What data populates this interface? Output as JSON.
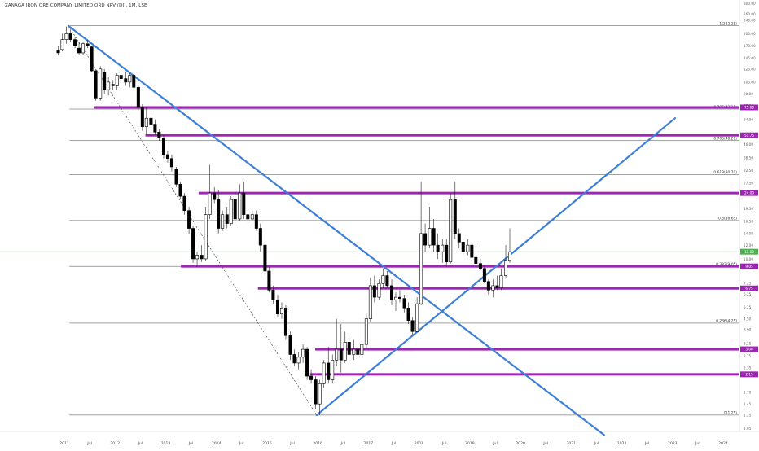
{
  "chart_data": {
    "type": "candlestick",
    "title": "ZANAGA IRON ORE COMPANY LIMITED ORD NPV (DI), 1M, LSE",
    "y_scale": "log",
    "ylim": [
      1.05,
      300
    ],
    "x_range": [
      "2010-10",
      "2024-06"
    ],
    "x_ticks": [
      {
        "t": 2011.0,
        "label": "2011"
      },
      {
        "t": 2011.5,
        "label": "Jul"
      },
      {
        "t": 2012.0,
        "label": "2012"
      },
      {
        "t": 2012.5,
        "label": "Jul"
      },
      {
        "t": 2013.0,
        "label": "2013"
      },
      {
        "t": 2013.5,
        "label": "Jul"
      },
      {
        "t": 2014.0,
        "label": "2014"
      },
      {
        "t": 2014.5,
        "label": "Jul"
      },
      {
        "t": 2015.0,
        "label": "2015"
      },
      {
        "t": 2015.5,
        "label": "Jul"
      },
      {
        "t": 2016.0,
        "label": "2016"
      },
      {
        "t": 2016.5,
        "label": "Jul"
      },
      {
        "t": 2017.0,
        "label": "2017"
      },
      {
        "t": 2017.5,
        "label": "Jul"
      },
      {
        "t": 2018.0,
        "label": "2018"
      },
      {
        "t": 2018.5,
        "label": "Jul"
      },
      {
        "t": 2019.0,
        "label": "2019"
      },
      {
        "t": 2019.5,
        "label": "Jul"
      },
      {
        "t": 2020.0,
        "label": "2020"
      },
      {
        "t": 2020.5,
        "label": "Jul"
      },
      {
        "t": 2021.0,
        "label": "2021"
      },
      {
        "t": 2021.5,
        "label": "Jul"
      },
      {
        "t": 2022.0,
        "label": "2022"
      },
      {
        "t": 2022.5,
        "label": "Jul"
      },
      {
        "t": 2023.0,
        "label": "2023"
      },
      {
        "t": 2023.5,
        "label": "Jul"
      },
      {
        "t": 2024.0,
        "label": "2024"
      }
    ],
    "y_ticks": [
      {
        "v": 300,
        "label": "300.00"
      },
      {
        "v": 260,
        "label": "260.00"
      },
      {
        "v": 240,
        "label": "240.00"
      },
      {
        "v": 200,
        "label": "200.00"
      },
      {
        "v": 170,
        "label": "170.00"
      },
      {
        "v": 145,
        "label": "145.00"
      },
      {
        "v": 125,
        "label": "125.00"
      },
      {
        "v": 105,
        "label": "105.00"
      },
      {
        "v": 90,
        "label": "90.00"
      },
      {
        "v": 77,
        "label": "77.00"
      },
      {
        "v": 64,
        "label": "64.00"
      },
      {
        "v": 46,
        "label": "46.00"
      },
      {
        "v": 38.5,
        "label": "38.50"
      },
      {
        "v": 32.5,
        "label": "32.50"
      },
      {
        "v": 27.5,
        "label": "27.50"
      },
      {
        "v": 19.5,
        "label": "19.50"
      },
      {
        "v": 16.5,
        "label": "16.50"
      },
      {
        "v": 14,
        "label": "14.00"
      },
      {
        "v": 12,
        "label": "12.00"
      },
      {
        "v": 10,
        "label": "10.00"
      },
      {
        "v": 7.25,
        "label": "7.25"
      },
      {
        "v": 6.25,
        "label": "6.25"
      },
      {
        "v": 5.25,
        "label": "5.25"
      },
      {
        "v": 4.5,
        "label": "4.50"
      },
      {
        "v": 3.9,
        "label": "3.90"
      },
      {
        "v": 3.25,
        "label": "3.25"
      },
      {
        "v": 2.75,
        "label": "2.75"
      },
      {
        "v": 2.35,
        "label": "2.35"
      },
      {
        "v": 1.7,
        "label": "1.70"
      },
      {
        "v": 1.45,
        "label": "1.45"
      },
      {
        "v": 1.25,
        "label": "1.25"
      },
      {
        "v": 1.05,
        "label": "1.05"
      }
    ],
    "fib_levels": [
      {
        "v": 222.25,
        "start": 2011.1,
        "label": "1(222.25)"
      },
      {
        "v": 73.35,
        "start": 2011.1,
        "label": "0.786(73.35)"
      },
      {
        "v": 48.2,
        "start": 2011.1,
        "label": "0.705(48.20)"
      },
      {
        "v": 30.7,
        "start": 2011.1,
        "label": "0.618(30.70)"
      },
      {
        "v": 16.65,
        "start": 2011.1,
        "label": "0.5(16.65)"
      },
      {
        "v": 9.05,
        "start": 2011.1,
        "label": "0.382(9.05)"
      },
      {
        "v": 4.25,
        "start": 2011.1,
        "label": "0.236(4.25)"
      },
      {
        "v": 1.25,
        "start": 2011.1,
        "label": "0(1.25)"
      }
    ],
    "sr_levels": [
      {
        "v": 75.0,
        "start": 2011.58,
        "label": "75.00",
        "color": "#9c27b0"
      },
      {
        "v": 51.75,
        "start": 2012.6,
        "label": "51.75"
      },
      {
        "v": 24.0,
        "start": 2013.65,
        "label": "24.00"
      },
      {
        "v": 9.05,
        "start": 2013.3,
        "label": "9.05"
      },
      {
        "v": 6.75,
        "start": 2014.82,
        "label": "6.75"
      },
      {
        "v": 3.0,
        "start": 2015.95,
        "label": "3.00"
      },
      {
        "v": 2.15,
        "start": 2015.85,
        "label": "2.15"
      }
    ],
    "last_price": {
      "v": 11.0,
      "label": "11.00",
      "color": "#4caf50"
    },
    "trendlines": [
      {
        "name": "",
        "from": [
          2011.08,
          222
        ],
        "to": [
          2021.65,
          0.96
        ]
      },
      {
        "name": "",
        "from": [
          2015.98,
          1.25
        ],
        "to": [
          2023.05,
          65
        ]
      }
    ],
    "dashed_line": {
      "from": [
        2011.08,
        222
      ],
      "to": [
        2015.98,
        1.25
      ]
    },
    "candles": [
      {
        "t": 2010.88,
        "o": 160,
        "h": 170,
        "l": 150,
        "c": 155
      },
      {
        "t": 2010.96,
        "o": 162,
        "h": 200,
        "l": 158,
        "c": 185
      },
      {
        "t": 2011.04,
        "o": 185,
        "h": 220,
        "l": 175,
        "c": 200
      },
      {
        "t": 2011.12,
        "o": 200,
        "h": 210,
        "l": 178,
        "c": 185
      },
      {
        "t": 2011.21,
        "o": 185,
        "h": 192,
        "l": 165,
        "c": 170
      },
      {
        "t": 2011.29,
        "o": 165,
        "h": 180,
        "l": 150,
        "c": 155
      },
      {
        "t": 2011.37,
        "o": 155,
        "h": 180,
        "l": 150,
        "c": 175
      },
      {
        "t": 2011.46,
        "o": 175,
        "h": 185,
        "l": 165,
        "c": 170
      },
      {
        "t": 2011.54,
        "o": 168,
        "h": 170,
        "l": 120,
        "c": 122
      },
      {
        "t": 2011.62,
        "o": 122,
        "h": 125,
        "l": 82,
        "c": 85
      },
      {
        "t": 2011.71,
        "o": 85,
        "h": 130,
        "l": 82,
        "c": 125
      },
      {
        "t": 2011.79,
        "o": 120,
        "h": 125,
        "l": 90,
        "c": 95
      },
      {
        "t": 2011.87,
        "o": 95,
        "h": 112,
        "l": 88,
        "c": 105
      },
      {
        "t": 2011.96,
        "o": 102,
        "h": 108,
        "l": 95,
        "c": 100
      },
      {
        "t": 2012.04,
        "o": 100,
        "h": 118,
        "l": 95,
        "c": 115
      },
      {
        "t": 2012.12,
        "o": 115,
        "h": 120,
        "l": 105,
        "c": 110
      },
      {
        "t": 2012.21,
        "o": 110,
        "h": 120,
        "l": 100,
        "c": 105
      },
      {
        "t": 2012.29,
        "o": 105,
        "h": 118,
        "l": 98,
        "c": 115
      },
      {
        "t": 2012.37,
        "o": 115,
        "h": 120,
        "l": 95,
        "c": 98
      },
      {
        "t": 2012.46,
        "o": 98,
        "h": 100,
        "l": 72,
        "c": 75
      },
      {
        "t": 2012.54,
        "o": 75,
        "h": 78,
        "l": 55,
        "c": 58
      },
      {
        "t": 2012.62,
        "o": 58,
        "h": 75,
        "l": 52,
        "c": 65
      },
      {
        "t": 2012.71,
        "o": 65,
        "h": 70,
        "l": 55,
        "c": 60
      },
      {
        "t": 2012.79,
        "o": 60,
        "h": 64,
        "l": 52,
        "c": 54
      },
      {
        "t": 2012.87,
        "o": 54,
        "h": 56,
        "l": 48,
        "c": 50
      },
      {
        "t": 2012.96,
        "o": 50,
        "h": 52,
        "l": 38,
        "c": 40
      },
      {
        "t": 2013.04,
        "o": 40,
        "h": 42,
        "l": 36,
        "c": 38
      },
      {
        "t": 2013.12,
        "o": 38,
        "h": 40,
        "l": 32,
        "c": 34
      },
      {
        "t": 2013.21,
        "o": 33,
        "h": 34,
        "l": 26,
        "c": 27
      },
      {
        "t": 2013.29,
        "o": 27,
        "h": 28,
        "l": 22,
        "c": 23
      },
      {
        "t": 2013.37,
        "o": 23,
        "h": 24,
        "l": 18,
        "c": 19
      },
      {
        "t": 2013.46,
        "o": 19,
        "h": 20,
        "l": 14,
        "c": 15
      },
      {
        "t": 2013.54,
        "o": 15,
        "h": 15.5,
        "l": 9.5,
        "c": 10
      },
      {
        "t": 2013.62,
        "o": 10,
        "h": 11,
        "l": 9.0,
        "c": 10.5
      },
      {
        "t": 2013.71,
        "o": 10.5,
        "h": 12,
        "l": 9.6,
        "c": 10
      },
      {
        "t": 2013.79,
        "o": 10,
        "h": 20,
        "l": 9.8,
        "c": 18
      },
      {
        "t": 2013.87,
        "o": 18,
        "h": 35,
        "l": 17,
        "c": 24
      },
      {
        "t": 2013.96,
        "o": 24,
        "h": 26,
        "l": 21,
        "c": 22
      },
      {
        "t": 2014.04,
        "o": 22,
        "h": 25,
        "l": 14,
        "c": 15
      },
      {
        "t": 2014.12,
        "o": 15,
        "h": 19,
        "l": 14.5,
        "c": 18
      },
      {
        "t": 2014.21,
        "o": 18,
        "h": 20,
        "l": 15,
        "c": 16
      },
      {
        "t": 2014.29,
        "o": 16,
        "h": 23,
        "l": 15.5,
        "c": 22
      },
      {
        "t": 2014.37,
        "o": 22,
        "h": 24,
        "l": 16,
        "c": 17
      },
      {
        "t": 2014.46,
        "o": 17,
        "h": 27,
        "l": 16.5,
        "c": 24
      },
      {
        "t": 2014.54,
        "o": 24,
        "h": 28,
        "l": 17,
        "c": 18
      },
      {
        "t": 2014.62,
        "o": 18,
        "h": 19,
        "l": 16,
        "c": 17
      },
      {
        "t": 2014.71,
        "o": 17,
        "h": 19,
        "l": 16.5,
        "c": 18
      },
      {
        "t": 2014.79,
        "o": 18,
        "h": 19,
        "l": 14.5,
        "c": 15
      },
      {
        "t": 2014.87,
        "o": 15,
        "h": 16,
        "l": 11,
        "c": 12
      },
      {
        "t": 2014.96,
        "o": 12,
        "h": 12.5,
        "l": 8.0,
        "c": 8.5
      },
      {
        "t": 2015.04,
        "o": 8.5,
        "h": 9.0,
        "l": 6.4,
        "c": 6.6
      },
      {
        "t": 2015.12,
        "o": 6.6,
        "h": 7.0,
        "l": 5.5,
        "c": 5.8
      },
      {
        "t": 2015.21,
        "o": 5.8,
        "h": 6.2,
        "l": 4.6,
        "c": 4.8
      },
      {
        "t": 2015.29,
        "o": 4.8,
        "h": 5.6,
        "l": 4.5,
        "c": 5.2
      },
      {
        "t": 2015.37,
        "o": 5.2,
        "h": 5.4,
        "l": 3.4,
        "c": 3.6
      },
      {
        "t": 2015.46,
        "o": 3.6,
        "h": 3.8,
        "l": 2.6,
        "c": 2.8
      },
      {
        "t": 2015.54,
        "o": 2.8,
        "h": 3.0,
        "l": 2.4,
        "c": 2.5
      },
      {
        "t": 2015.62,
        "o": 2.5,
        "h": 2.9,
        "l": 2.3,
        "c": 2.7
      },
      {
        "t": 2015.71,
        "o": 2.7,
        "h": 3.2,
        "l": 2.5,
        "c": 3.0
      },
      {
        "t": 2015.79,
        "o": 3.0,
        "h": 3.1,
        "l": 2.0,
        "c": 2.1
      },
      {
        "t": 2015.87,
        "o": 2.1,
        "h": 2.3,
        "l": 1.9,
        "c": 2.0
      },
      {
        "t": 2015.96,
        "o": 2.0,
        "h": 2.1,
        "l": 1.35,
        "c": 1.45
      },
      {
        "t": 2016.04,
        "o": 1.45,
        "h": 2.0,
        "l": 1.25,
        "c": 1.9
      },
      {
        "t": 2016.12,
        "o": 1.9,
        "h": 2.6,
        "l": 1.8,
        "c": 2.5
      },
      {
        "t": 2016.21,
        "o": 2.5,
        "h": 3.1,
        "l": 1.9,
        "c": 2.0
      },
      {
        "t": 2016.29,
        "o": 2.0,
        "h": 2.8,
        "l": 1.9,
        "c": 2.6
      },
      {
        "t": 2016.37,
        "o": 2.6,
        "h": 4.5,
        "l": 2.4,
        "c": 3.0
      },
      {
        "t": 2016.46,
        "o": 3.0,
        "h": 4.2,
        "l": 2.2,
        "c": 2.6
      },
      {
        "t": 2016.54,
        "o": 2.6,
        "h": 3.8,
        "l": 2.5,
        "c": 3.3
      },
      {
        "t": 2016.62,
        "o": 3.3,
        "h": 3.6,
        "l": 2.6,
        "c": 2.8
      },
      {
        "t": 2016.71,
        "o": 2.8,
        "h": 3.4,
        "l": 2.6,
        "c": 3.0
      },
      {
        "t": 2016.79,
        "o": 3.0,
        "h": 3.1,
        "l": 2.6,
        "c": 2.8
      },
      {
        "t": 2016.87,
        "o": 2.8,
        "h": 3.4,
        "l": 2.7,
        "c": 3.2
      },
      {
        "t": 2016.96,
        "o": 3.2,
        "h": 4.8,
        "l": 3.0,
        "c": 4.5
      },
      {
        "t": 2017.04,
        "o": 4.5,
        "h": 7.8,
        "l": 4.3,
        "c": 7.0
      },
      {
        "t": 2017.12,
        "o": 7.0,
        "h": 8.0,
        "l": 5.6,
        "c": 6.0
      },
      {
        "t": 2017.21,
        "o": 6.0,
        "h": 7.6,
        "l": 5.8,
        "c": 7.2
      },
      {
        "t": 2017.29,
        "o": 7.2,
        "h": 8.8,
        "l": 6.8,
        "c": 8.0
      },
      {
        "t": 2017.37,
        "o": 8.0,
        "h": 8.5,
        "l": 6.8,
        "c": 7.0
      },
      {
        "t": 2017.46,
        "o": 7.0,
        "h": 7.6,
        "l": 5.4,
        "c": 5.8
      },
      {
        "t": 2017.54,
        "o": 5.8,
        "h": 6.4,
        "l": 5.0,
        "c": 6.0
      },
      {
        "t": 2017.62,
        "o": 6.0,
        "h": 6.6,
        "l": 5.6,
        "c": 5.9
      },
      {
        "t": 2017.71,
        "o": 5.9,
        "h": 6.2,
        "l": 4.9,
        "c": 5.2
      },
      {
        "t": 2017.79,
        "o": 5.2,
        "h": 5.6,
        "l": 4.2,
        "c": 4.4
      },
      {
        "t": 2017.87,
        "o": 4.4,
        "h": 4.6,
        "l": 3.6,
        "c": 3.8
      },
      {
        "t": 2017.96,
        "o": 3.8,
        "h": 6.0,
        "l": 3.8,
        "c": 5.5
      },
      {
        "t": 2018.04,
        "o": 5.5,
        "h": 28.0,
        "l": 5.4,
        "c": 14.0
      },
      {
        "t": 2018.12,
        "o": 14.0,
        "h": 16.0,
        "l": 11.0,
        "c": 12.0
      },
      {
        "t": 2018.21,
        "o": 12.0,
        "h": 20.0,
        "l": 11.5,
        "c": 15.0
      },
      {
        "t": 2018.29,
        "o": 15.0,
        "h": 17.0,
        "l": 11.0,
        "c": 12.0
      },
      {
        "t": 2018.37,
        "o": 12.0,
        "h": 14.0,
        "l": 10.0,
        "c": 11.0
      },
      {
        "t": 2018.46,
        "o": 11.0,
        "h": 13.0,
        "l": 9.5,
        "c": 12.0
      },
      {
        "t": 2018.54,
        "o": 12.0,
        "h": 13.0,
        "l": 9.0,
        "c": 9.6
      },
      {
        "t": 2018.62,
        "o": 9.6,
        "h": 24.0,
        "l": 9.4,
        "c": 22.0
      },
      {
        "t": 2018.71,
        "o": 22.0,
        "h": 28.0,
        "l": 13.0,
        "c": 14.0
      },
      {
        "t": 2018.79,
        "o": 14.0,
        "h": 15.0,
        "l": 11.5,
        "c": 12.5
      },
      {
        "t": 2018.87,
        "o": 12.5,
        "h": 13.0,
        "l": 10.5,
        "c": 11.0
      },
      {
        "t": 2018.96,
        "o": 11.0,
        "h": 13.0,
        "l": 10.5,
        "c": 12.0
      },
      {
        "t": 2019.04,
        "o": 12.0,
        "h": 12.5,
        "l": 9.8,
        "c": 10.2
      },
      {
        "t": 2019.12,
        "o": 10.2,
        "h": 12.0,
        "l": 9.0,
        "c": 9.4
      },
      {
        "t": 2019.21,
        "o": 9.4,
        "h": 10.0,
        "l": 8.6,
        "c": 8.8
      },
      {
        "t": 2019.29,
        "o": 8.8,
        "h": 9.2,
        "l": 7.2,
        "c": 7.4
      },
      {
        "t": 2019.37,
        "o": 7.4,
        "h": 7.6,
        "l": 6.2,
        "c": 6.6
      },
      {
        "t": 2019.46,
        "o": 6.6,
        "h": 7.6,
        "l": 6.0,
        "c": 7.0
      },
      {
        "t": 2019.54,
        "o": 7.0,
        "h": 8.0,
        "l": 6.6,
        "c": 6.8
      },
      {
        "t": 2019.62,
        "o": 6.8,
        "h": 8.8,
        "l": 6.6,
        "c": 8.0
      },
      {
        "t": 2019.71,
        "o": 8.0,
        "h": 12.0,
        "l": 7.8,
        "c": 9.8
      },
      {
        "t": 2019.79,
        "o": 9.8,
        "h": 15.0,
        "l": 9.5,
        "c": 11.0
      }
    ]
  }
}
